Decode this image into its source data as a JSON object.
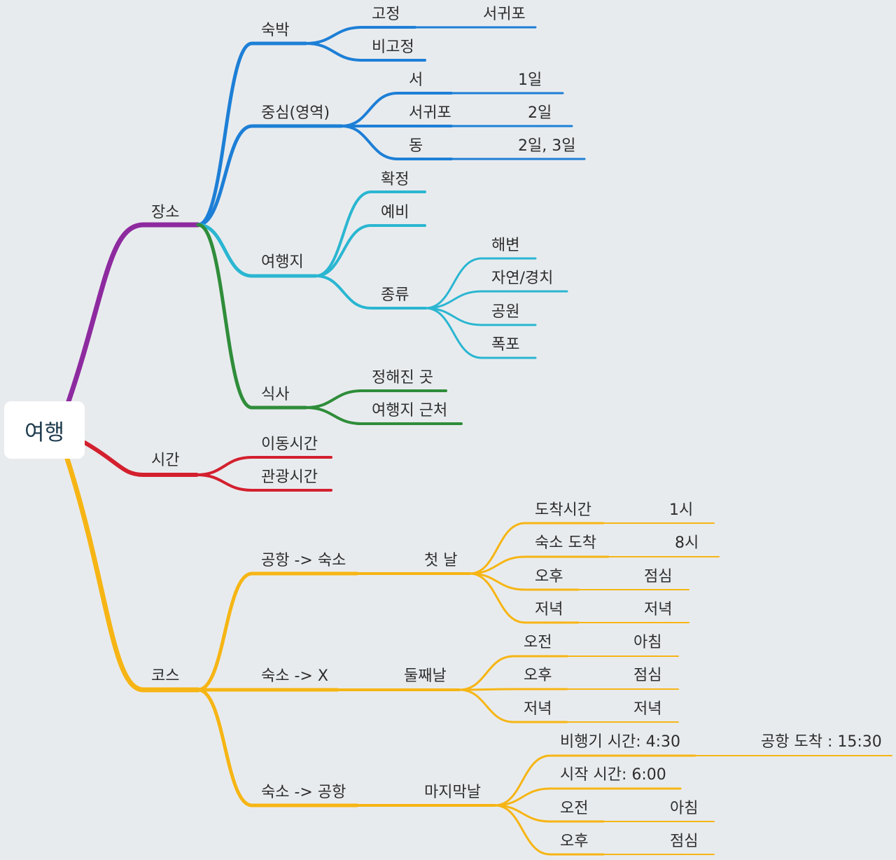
{
  "root": "여행",
  "colors": {
    "place": "#8e2a9f",
    "stay": "#1d7fd6",
    "dest": "#2ab6d1",
    "food": "#2f8d3a",
    "time": "#d3202e",
    "course": "#f6b514",
    "background": "#e8ebee"
  },
  "branches": {
    "place": {
      "label": "장소",
      "stay": {
        "label": "숙박",
        "fixed": "고정",
        "fixed_value": "서귀포",
        "unfixed": "비고정"
      },
      "center": {
        "label": "중심(영역)",
        "west": "서",
        "west_value": "1일",
        "seogwipo": "서귀포",
        "seogwipo_value": "2일",
        "east": "동",
        "east_value": "2일, 3일"
      },
      "destination": {
        "label": "여행지",
        "confirmed": "확정",
        "reserve": "예비",
        "type": "종류",
        "types": [
          "해변",
          "자연/경치",
          "공원",
          "폭포"
        ]
      },
      "meal": {
        "label": "식사",
        "fixed_place": "정해진 곳",
        "nearby": "여행지 근처"
      }
    },
    "time": {
      "label": "시간",
      "travel": "이동시간",
      "sightseeing": "관광시간"
    },
    "course": {
      "label": "코스",
      "day1": {
        "route": "공항 -> 숙소",
        "day": "첫 날",
        "arrival": "도착시간",
        "arrival_value": "1시",
        "checkin": "숙소 도착",
        "checkin_value": "8시",
        "afternoon": "오후",
        "afternoon_value": "점심",
        "evening": "저녁",
        "evening_value": "저녁"
      },
      "day2": {
        "route": "숙소 -> X",
        "day": "둘째날",
        "morning": "오전",
        "morning_value": "아침",
        "afternoon": "오후",
        "afternoon_value": "점심",
        "evening": "저녁",
        "evening_value": "저녁"
      },
      "day3": {
        "route": "숙소 -> 공항",
        "day": "마지막날",
        "flight": "비행기 시간: 4:30",
        "flight_value": "공항 도착 : 15:30",
        "start": "시작 시간: 6:00",
        "morning": "오전",
        "morning_value": "아침",
        "afternoon": "오후",
        "afternoon_value": "점심"
      }
    }
  }
}
